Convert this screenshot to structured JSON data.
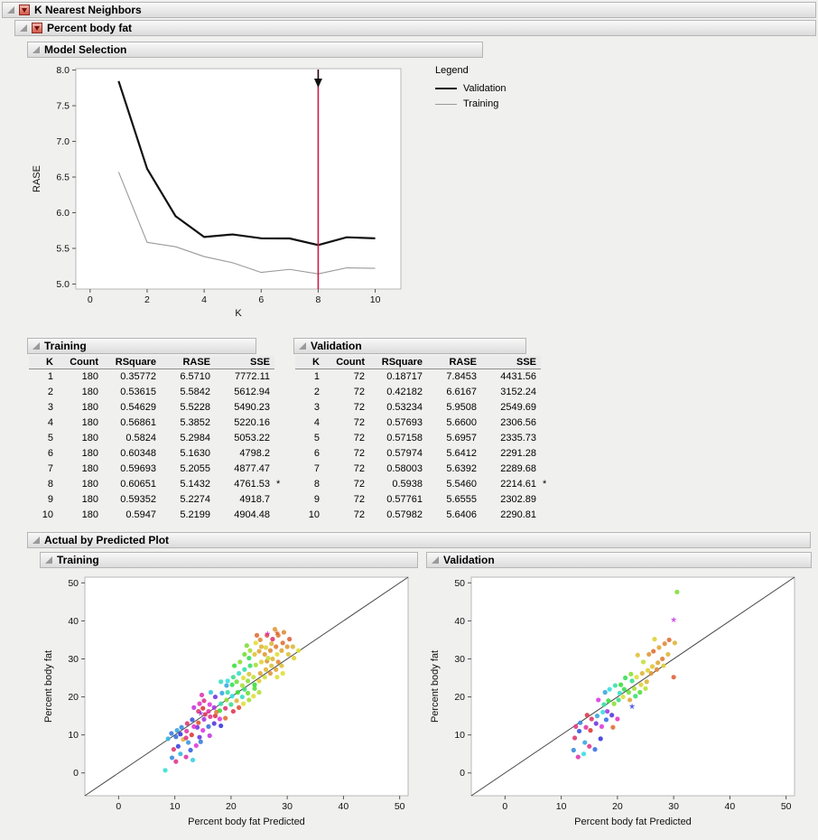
{
  "colors": {
    "selection_line": "#d11947",
    "validation_line": "#111111",
    "training_line": "#9a9a9a",
    "header_bg": "#e6e6e6",
    "plot_bg": "#ffffff"
  },
  "outlines": {
    "knn": "K Nearest Neighbors",
    "percent_body_fat": "Percent body fat",
    "model_selection": "Model Selection",
    "actual_by_predicted": "Actual by Predicted Plot"
  },
  "training_table": {
    "title": "Training",
    "headers": [
      "K",
      "Count",
      "RSquare",
      "RASE",
      "SSE"
    ],
    "rows": [
      [
        "1",
        "180",
        "0.35772",
        "6.5710",
        "7772.11",
        ""
      ],
      [
        "2",
        "180",
        "0.53615",
        "5.5842",
        "5612.94",
        ""
      ],
      [
        "3",
        "180",
        "0.54629",
        "5.5228",
        "5490.23",
        ""
      ],
      [
        "4",
        "180",
        "0.56861",
        "5.3852",
        "5220.16",
        ""
      ],
      [
        "5",
        "180",
        "0.5824",
        "5.2984",
        "5053.22",
        ""
      ],
      [
        "6",
        "180",
        "0.60348",
        "5.1630",
        "4798.2",
        ""
      ],
      [
        "7",
        "180",
        "0.59693",
        "5.2055",
        "4877.47",
        ""
      ],
      [
        "8",
        "180",
        "0.60651",
        "5.1432",
        "4761.53",
        "*"
      ],
      [
        "9",
        "180",
        "0.59352",
        "5.2274",
        "4918.7",
        ""
      ],
      [
        "10",
        "180",
        "0.5947",
        "5.2199",
        "4904.48",
        ""
      ]
    ]
  },
  "validation_table": {
    "title": "Validation",
    "headers": [
      "K",
      "Count",
      "RSquare",
      "RASE",
      "SSE"
    ],
    "rows": [
      [
        "1",
        "72",
        "0.18717",
        "7.8453",
        "4431.56",
        ""
      ],
      [
        "2",
        "72",
        "0.42182",
        "6.6167",
        "3152.24",
        ""
      ],
      [
        "3",
        "72",
        "0.53234",
        "5.9508",
        "2549.69",
        ""
      ],
      [
        "4",
        "72",
        "0.57693",
        "5.6600",
        "2306.56",
        ""
      ],
      [
        "5",
        "72",
        "0.57158",
        "5.6957",
        "2335.73",
        ""
      ],
      [
        "6",
        "72",
        "0.57974",
        "5.6412",
        "2291.28",
        ""
      ],
      [
        "7",
        "72",
        "0.58003",
        "5.6392",
        "2289.68",
        ""
      ],
      [
        "8",
        "72",
        "0.5938",
        "5.5460",
        "2214.61",
        "*"
      ],
      [
        "9",
        "72",
        "0.57761",
        "5.6555",
        "2302.89",
        ""
      ],
      [
        "10",
        "72",
        "0.57982",
        "5.6406",
        "2290.81",
        ""
      ]
    ]
  },
  "chart_data": [
    {
      "type": "line",
      "name": "model-selection-chart",
      "xlabel": "K",
      "ylabel": "RASE",
      "x": [
        1,
        2,
        3,
        4,
        5,
        6,
        7,
        8,
        9,
        10
      ],
      "series": [
        {
          "name": "Validation",
          "color": "#111111",
          "width": 2.2,
          "values": [
            7.8453,
            6.6167,
            5.9508,
            5.66,
            5.6957,
            5.6412,
            5.6392,
            5.546,
            5.6555,
            5.6406
          ]
        },
        {
          "name": "Training",
          "color": "#9a9a9a",
          "width": 1.1,
          "values": [
            6.571,
            5.5842,
            5.5228,
            5.3852,
            5.2984,
            5.163,
            5.2055,
            5.1432,
            5.2274,
            5.2199
          ]
        }
      ],
      "xlim": [
        -0.5,
        10.9
      ],
      "ylim": [
        4.93,
        8.02
      ],
      "xticks": [
        0,
        2,
        4,
        6,
        8,
        10
      ],
      "yticks": [
        5.0,
        5.5,
        6.0,
        6.5,
        7.0,
        7.5,
        8.0
      ],
      "selected_k": 8,
      "selection_color": "#d11947",
      "legend_title": "Legend",
      "legend_position": "right",
      "grid": false
    },
    {
      "type": "scatter",
      "panel": "Training",
      "xlabel": "Percent body fat Predicted",
      "ylabel": "Percent body fat",
      "xlim": [
        -6,
        51.5
      ],
      "ylim": [
        -6,
        51.5
      ],
      "xticks": [
        0,
        10,
        20,
        30,
        40,
        50
      ],
      "yticks": [
        0,
        10,
        20,
        30,
        40,
        50
      ],
      "diagonal": true,
      "points": [
        [
          8.3,
          0.7,
          175
        ],
        [
          9.5,
          4.0,
          210
        ],
        [
          10.2,
          3.0,
          330
        ],
        [
          11.0,
          5.0,
          195
        ],
        [
          12.0,
          4.2,
          320
        ],
        [
          12.8,
          6.0,
          225
        ],
        [
          10.6,
          7.0,
          235
        ],
        [
          13.8,
          7.2,
          300
        ],
        [
          12.4,
          8.0,
          205
        ],
        [
          9.8,
          6.2,
          340
        ],
        [
          14.6,
          8.2,
          215
        ],
        [
          13.2,
          3.4,
          185
        ],
        [
          11.5,
          8.8,
          45
        ],
        [
          10.2,
          9.5,
          220
        ],
        [
          11.0,
          10.2,
          240
        ],
        [
          12.1,
          11.0,
          320
        ],
        [
          13.0,
          10.0,
          0
        ],
        [
          14.0,
          12.0,
          260
        ],
        [
          15.0,
          11.2,
          300
        ],
        [
          12.2,
          13.0,
          340
        ],
        [
          13.1,
          14.0,
          230
        ],
        [
          14.2,
          13.2,
          10
        ],
        [
          15.2,
          14.1,
          280
        ],
        [
          16.0,
          12.2,
          220
        ],
        [
          16.3,
          14.8,
          330
        ],
        [
          17.0,
          13.0,
          250
        ],
        [
          11.2,
          12.0,
          210
        ],
        [
          10.4,
          11.2,
          200
        ],
        [
          9.4,
          10.4,
          215
        ],
        [
          17.2,
          15.0,
          355
        ],
        [
          18.0,
          14.2,
          300
        ],
        [
          12.0,
          9.2,
          330
        ],
        [
          14.4,
          9.4,
          255
        ],
        [
          16.2,
          9.8,
          290
        ],
        [
          18.2,
          12.4,
          240
        ],
        [
          19.0,
          14.4,
          20
        ],
        [
          13.4,
          12.2,
          305
        ],
        [
          8.8,
          9.0,
          195
        ],
        [
          14.2,
          16.2,
          340
        ],
        [
          15.0,
          17.0,
          0
        ],
        [
          16.0,
          16.2,
          320
        ],
        [
          17.0,
          17.2,
          280
        ],
        [
          18.0,
          16.4,
          120
        ],
        [
          18.2,
          18.2,
          160
        ],
        [
          19.0,
          17.0,
          340
        ],
        [
          19.2,
          19.2,
          90
        ],
        [
          20.0,
          18.0,
          150
        ],
        [
          20.2,
          20.2,
          180
        ],
        [
          21.0,
          19.0,
          45
        ],
        [
          21.2,
          21.2,
          120
        ],
        [
          22.0,
          20.0,
          170
        ],
        [
          22.2,
          18.2,
          60
        ],
        [
          23.0,
          21.0,
          100
        ],
        [
          16.2,
          18.0,
          300
        ],
        [
          15.2,
          19.0,
          330
        ],
        [
          17.2,
          20.0,
          260
        ],
        [
          18.4,
          21.0,
          200
        ],
        [
          19.4,
          21.2,
          160
        ],
        [
          20.4,
          16.2,
          350
        ],
        [
          21.4,
          17.2,
          10
        ],
        [
          22.4,
          22.0,
          140
        ],
        [
          23.2,
          19.2,
          80
        ],
        [
          24.0,
          20.2,
          60
        ],
        [
          24.2,
          22.2,
          110
        ],
        [
          16.4,
          21.2,
          190
        ],
        [
          15.4,
          15.4,
          345
        ],
        [
          14.4,
          18.2,
          310
        ],
        [
          13.4,
          17.2,
          290
        ],
        [
          17.4,
          16.0,
          25
        ],
        [
          25.0,
          21.2,
          75
        ],
        [
          14.8,
          20.5,
          315
        ],
        [
          20.2,
          23.2,
          130
        ],
        [
          21.0,
          24.0,
          100
        ],
        [
          22.0,
          23.0,
          80
        ],
        [
          22.2,
          25.0,
          60
        ],
        [
          23.0,
          24.2,
          90
        ],
        [
          23.2,
          26.0,
          50
        ],
        [
          24.0,
          25.2,
          70
        ],
        [
          24.2,
          23.2,
          120
        ],
        [
          25.0,
          24.2,
          55
        ],
        [
          25.2,
          26.2,
          40
        ],
        [
          26.0,
          25.2,
          65
        ],
        [
          26.2,
          27.2,
          45
        ],
        [
          27.0,
          26.2,
          35
        ],
        [
          27.2,
          28.2,
          50
        ],
        [
          28.0,
          27.2,
          40
        ],
        [
          28.2,
          25.2,
          60
        ],
        [
          23.4,
          28.2,
          140
        ],
        [
          22.4,
          27.2,
          160
        ],
        [
          21.4,
          26.2,
          170
        ],
        [
          20.4,
          25.2,
          150
        ],
        [
          19.4,
          24.2,
          180
        ],
        [
          24.4,
          28.4,
          80
        ],
        [
          25.4,
          29.2,
          55
        ],
        [
          26.4,
          29.4,
          35
        ],
        [
          27.4,
          30.0,
          45
        ],
        [
          28.4,
          29.2,
          30
        ],
        [
          29.0,
          28.2,
          50
        ],
        [
          19.2,
          23.0,
          200
        ],
        [
          18.2,
          24.0,
          170
        ],
        [
          29.2,
          26.2,
          60
        ],
        [
          20.6,
          28.2,
          120
        ],
        [
          21.6,
          29.2,
          90
        ],
        [
          24.2,
          31.2,
          50
        ],
        [
          25.0,
          32.0,
          40
        ],
        [
          26.0,
          31.2,
          35
        ],
        [
          26.2,
          33.0,
          55
        ],
        [
          27.0,
          32.2,
          30
        ],
        [
          27.2,
          34.0,
          45
        ],
        [
          28.0,
          33.2,
          25
        ],
        [
          28.2,
          31.2,
          60
        ],
        [
          29.0,
          32.2,
          40
        ],
        [
          29.2,
          34.2,
          20
        ],
        [
          30.0,
          33.2,
          35
        ],
        [
          30.2,
          31.2,
          50
        ],
        [
          25.2,
          35.0,
          30
        ],
        [
          26.4,
          36.2,
          15
        ],
        [
          27.4,
          35.2,
          340
        ],
        [
          28.4,
          36.2,
          25
        ],
        [
          24.4,
          34.2,
          60
        ],
        [
          23.4,
          32.2,
          80
        ],
        [
          22.4,
          31.2,
          100
        ],
        [
          31.0,
          33.2,
          45
        ],
        [
          31.2,
          30.2,
          55
        ],
        [
          30.4,
          35.2,
          15
        ],
        [
          29.4,
          37.0,
          30
        ],
        [
          26.6,
          30.2,
          70
        ],
        [
          23.2,
          30.2,
          130
        ],
        [
          32.0,
          32.2,
          60
        ],
        [
          25.4,
          33.2,
          45
        ],
        [
          24.6,
          36.2,
          20
        ],
        [
          27.8,
          37.8,
          35
        ],
        [
          22.8,
          33.5,
          95
        ]
      ],
      "asterisks": [
        [
          26.5,
          36.5,
          310
        ],
        [
          28.2,
          36.8,
          15
        ],
        [
          14.6,
          15.6,
          270
        ]
      ]
    },
    {
      "type": "scatter",
      "panel": "Validation",
      "xlabel": "Percent body fat Predicted",
      "ylabel": "Percent body fat",
      "xlim": [
        -6,
        51.5
      ],
      "ylim": [
        -6,
        51.5
      ],
      "xticks": [
        0,
        10,
        20,
        30,
        40,
        50
      ],
      "yticks": [
        0,
        10,
        20,
        30,
        40,
        50
      ],
      "diagonal": true,
      "points": [
        [
          13.0,
          4.2,
          320
        ],
        [
          14.0,
          5.0,
          180
        ],
        [
          12.2,
          6.0,
          210
        ],
        [
          15.0,
          7.0,
          330
        ],
        [
          16.0,
          6.2,
          220
        ],
        [
          14.2,
          8.0,
          200
        ],
        [
          17.0,
          9.0,
          240
        ],
        [
          12.4,
          9.2,
          340
        ],
        [
          13.2,
          11.0,
          230
        ],
        [
          14.4,
          12.0,
          320
        ],
        [
          15.2,
          11.2,
          0
        ],
        [
          16.2,
          13.0,
          260
        ],
        [
          17.2,
          12.2,
          300
        ],
        [
          18.0,
          14.0,
          220
        ],
        [
          15.4,
          14.2,
          340
        ],
        [
          16.4,
          15.0,
          200
        ],
        [
          17.4,
          16.0,
          180
        ],
        [
          18.2,
          16.2,
          280
        ],
        [
          19.0,
          15.2,
          250
        ],
        [
          13.4,
          13.2,
          210
        ],
        [
          12.6,
          12.2,
          330
        ],
        [
          19.2,
          12.0,
          20
        ],
        [
          20.0,
          14.2,
          310
        ],
        [
          14.6,
          15.2,
          355
        ],
        [
          17.6,
          18.0,
          160
        ],
        [
          18.4,
          19.0,
          120
        ],
        [
          19.4,
          18.2,
          90
        ],
        [
          20.2,
          19.2,
          150
        ],
        [
          20.4,
          21.0,
          170
        ],
        [
          21.0,
          20.0,
          60
        ],
        [
          21.2,
          22.0,
          130
        ],
        [
          22.0,
          21.2,
          100
        ],
        [
          22.2,
          19.2,
          40
        ],
        [
          23.0,
          22.2,
          80
        ],
        [
          23.2,
          20.2,
          140
        ],
        [
          24.0,
          21.2,
          110
        ],
        [
          18.6,
          22.0,
          180
        ],
        [
          19.6,
          23.0,
          160
        ],
        [
          24.2,
          23.2,
          55
        ],
        [
          25.0,
          22.2,
          75
        ],
        [
          16.6,
          19.2,
          300
        ],
        [
          17.8,
          21.2,
          200
        ],
        [
          25.2,
          24.0,
          45
        ],
        [
          20.6,
          23.2,
          120
        ],
        [
          21.4,
          25.0,
          130
        ],
        [
          22.4,
          26.0,
          90
        ],
        [
          23.4,
          25.2,
          60
        ],
        [
          24.4,
          26.2,
          45
        ],
        [
          25.4,
          27.0,
          55
        ],
        [
          26.0,
          26.2,
          35
        ],
        [
          26.2,
          28.0,
          50
        ],
        [
          27.0,
          27.2,
          30
        ],
        [
          27.2,
          29.0,
          40
        ],
        [
          28.0,
          30.0,
          25
        ],
        [
          24.6,
          29.2,
          70
        ],
        [
          23.6,
          31.0,
          50
        ],
        [
          25.6,
          31.2,
          35
        ],
        [
          26.4,
          32.0,
          20
        ],
        [
          28.2,
          28.2,
          55
        ],
        [
          22.6,
          24.2,
          150
        ],
        [
          29.0,
          31.2,
          45
        ],
        [
          30.0,
          25.2,
          15
        ],
        [
          27.4,
          33.0,
          40
        ],
        [
          28.4,
          34.0,
          30
        ],
        [
          29.2,
          35.0,
          20
        ],
        [
          30.2,
          34.2,
          45
        ],
        [
          26.6,
          35.2,
          55
        ],
        [
          30.6,
          47.6,
          95
        ]
      ],
      "asterisks": [
        [
          30.0,
          40.2,
          290
        ],
        [
          22.6,
          17.4,
          235
        ]
      ]
    }
  ]
}
